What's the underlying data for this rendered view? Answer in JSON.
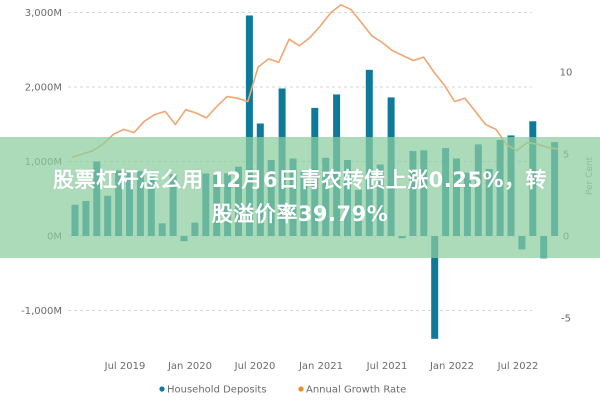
{
  "headline": {
    "line1": "股票杠杆怎么用 12月6日青农转债上涨0.25%，转",
    "line2": "股溢价率39.79%"
  },
  "colors": {
    "bars": "#0e7a99",
    "line": "#f0a673",
    "grid": "#d6d6d6",
    "overlay": "#8ccda0",
    "legend_household": "#0e7a99",
    "legend_growth": "#f58a2c"
  },
  "legend": {
    "items": [
      {
        "label": "Household Deposits",
        "color": "#0e7a99"
      },
      {
        "label": "Annual Growth Rate",
        "color": "#f58a2c"
      }
    ]
  },
  "chart_data": {
    "type": "bar+line",
    "title": "",
    "xlabel": "",
    "ylabel_left": "",
    "ylabel_right": "Per Cent",
    "left_axis": {
      "ticks": [
        "3,000M",
        "2,000M",
        "1,000M",
        "0M",
        "-1,000M"
      ],
      "tick_values": [
        3000,
        2000,
        1000,
        0,
        -1000
      ],
      "ylim": [
        -1400,
        3100
      ]
    },
    "right_axis": {
      "ticks": [
        "10",
        "5",
        "0",
        "-5"
      ],
      "tick_values": [
        10,
        5,
        0,
        -5
      ],
      "ylim": [
        -7,
        14
      ]
    },
    "x_tick_labels": [
      "Jul 2019",
      "Jan 2020",
      "Jul 2020",
      "Jan 2021",
      "Jul 2021",
      "Jan 2022",
      "Jul 2022"
    ],
    "grid": true,
    "legend_position": "bottom",
    "series": [
      {
        "name": "Household Deposits",
        "type": "bar",
        "unit": "M",
        "values": [
          420,
          470,
          1000,
          540,
          880,
          860,
          870,
          820,
          170,
          830,
          -70,
          180,
          840,
          820,
          840,
          930,
          2960,
          1510,
          1020,
          1980,
          1040,
          860,
          1720,
          1050,
          1900,
          1020,
          620,
          2230,
          960,
          1860,
          -30,
          1140,
          1150,
          -1380,
          1180,
          1040,
          850,
          1230,
          900,
          1290,
          1350,
          -180,
          1540,
          -300,
          1260
        ],
        "note": "Monthly values estimated from bar heights, approx. Mar 2019 – Nov 2022"
      },
      {
        "name": "Annual Growth Rate",
        "type": "line",
        "unit": "%",
        "values": [
          4.8,
          5.0,
          5.2,
          5.6,
          6.2,
          6.5,
          6.3,
          7.0,
          7.4,
          7.6,
          6.8,
          7.7,
          7.5,
          7.2,
          7.9,
          8.5,
          8.4,
          8.2,
          10.3,
          10.8,
          10.6,
          12.0,
          11.6,
          12.1,
          12.8,
          13.6,
          14.1,
          13.8,
          13.0,
          12.2,
          11.8,
          11.3,
          11.0,
          10.7,
          10.9,
          10.0,
          9.2,
          8.2,
          8.4,
          7.6,
          6.8,
          6.5,
          5.6,
          5.2,
          5.7,
          5.6,
          5.4,
          5.3
        ],
        "note": "Estimated from line vertices"
      }
    ]
  }
}
